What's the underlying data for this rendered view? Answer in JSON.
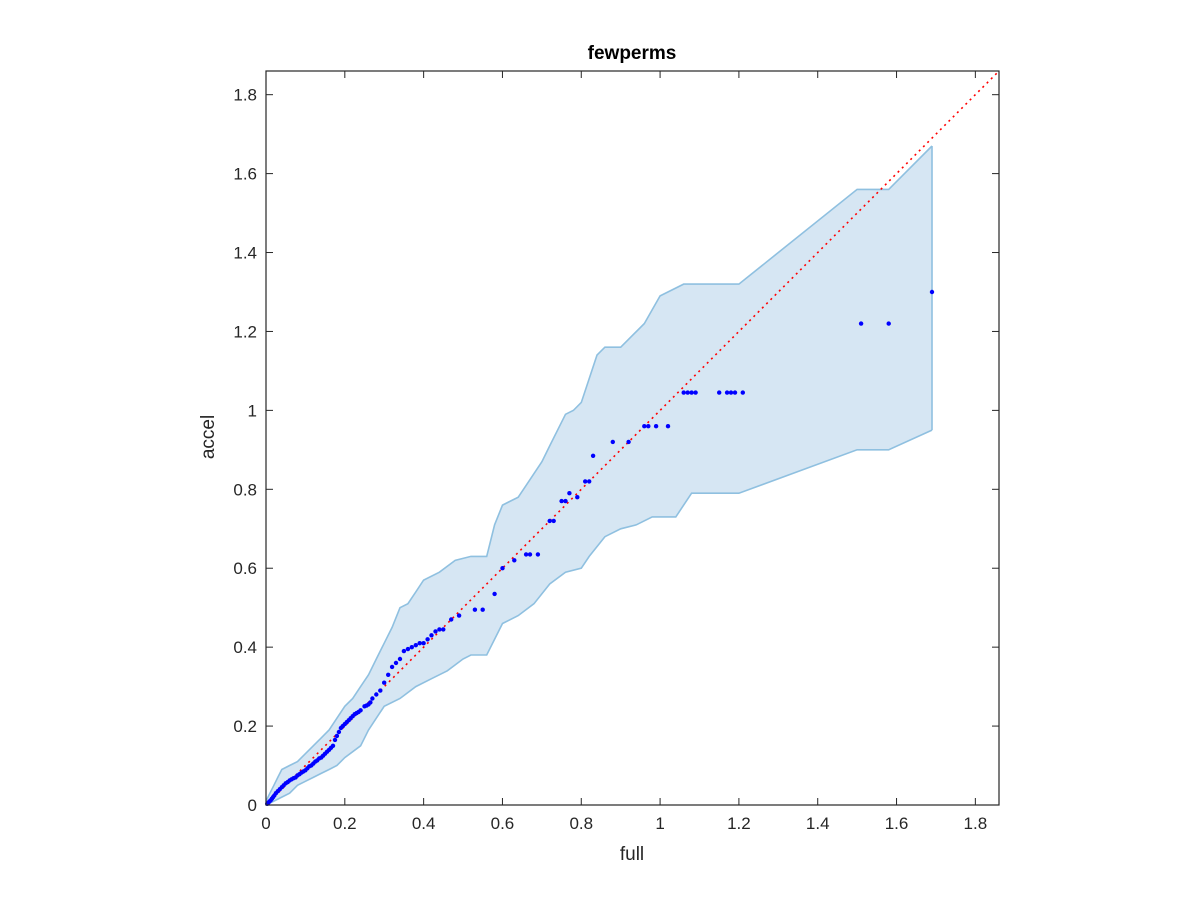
{
  "chart_data": {
    "type": "scatter",
    "title": "fewperms",
    "xlabel": "full",
    "ylabel": "accel",
    "xlim": [
      0,
      1.86
    ],
    "ylim": [
      0,
      1.86
    ],
    "xticks": [
      0,
      0.2,
      0.4,
      0.6,
      0.8,
      1,
      1.2,
      1.4,
      1.6,
      1.8
    ],
    "yticks": [
      0,
      0.2,
      0.4,
      0.6,
      0.8,
      1,
      1.2,
      1.4,
      1.6,
      1.8
    ],
    "xtick_labels": [
      "0",
      "0.2",
      "0.4",
      "0.6",
      "0.8",
      "1",
      "1.2",
      "1.4",
      "1.6",
      "1.8"
    ],
    "ytick_labels": [
      "0",
      "0.2",
      "0.4",
      "0.6",
      "0.8",
      "1",
      "1.2",
      "1.4",
      "1.6",
      "1.8"
    ],
    "grid": false,
    "colors": {
      "points": "#0000ff",
      "diagonal": "#ff0000",
      "band_fill": "#d6e6f3",
      "band_edge": "#8fc0e0",
      "axes": "#262626"
    },
    "band_upper": [
      [
        0,
        0.01
      ],
      [
        0.01,
        0.03
      ],
      [
        0.02,
        0.05
      ],
      [
        0.03,
        0.07
      ],
      [
        0.04,
        0.09
      ],
      [
        0.06,
        0.1
      ],
      [
        0.08,
        0.11
      ],
      [
        0.1,
        0.13
      ],
      [
        0.12,
        0.15
      ],
      [
        0.14,
        0.17
      ],
      [
        0.16,
        0.19
      ],
      [
        0.18,
        0.22
      ],
      [
        0.2,
        0.25
      ],
      [
        0.22,
        0.27
      ],
      [
        0.24,
        0.3
      ],
      [
        0.26,
        0.33
      ],
      [
        0.28,
        0.37
      ],
      [
        0.3,
        0.41
      ],
      [
        0.32,
        0.45
      ],
      [
        0.34,
        0.5
      ],
      [
        0.36,
        0.51
      ],
      [
        0.38,
        0.54
      ],
      [
        0.4,
        0.57
      ],
      [
        0.44,
        0.59
      ],
      [
        0.48,
        0.62
      ],
      [
        0.52,
        0.63
      ],
      [
        0.56,
        0.63
      ],
      [
        0.58,
        0.71
      ],
      [
        0.6,
        0.76
      ],
      [
        0.64,
        0.78
      ],
      [
        0.66,
        0.81
      ],
      [
        0.7,
        0.87
      ],
      [
        0.72,
        0.91
      ],
      [
        0.76,
        0.99
      ],
      [
        0.78,
        1.0
      ],
      [
        0.8,
        1.02
      ],
      [
        0.84,
        1.14
      ],
      [
        0.86,
        1.16
      ],
      [
        0.9,
        1.16
      ],
      [
        0.94,
        1.2
      ],
      [
        0.96,
        1.22
      ],
      [
        1.0,
        1.29
      ],
      [
        1.06,
        1.32
      ],
      [
        1.2,
        1.32
      ],
      [
        1.5,
        1.56
      ],
      [
        1.58,
        1.56
      ],
      [
        1.69,
        1.67
      ]
    ],
    "band_lower": [
      [
        0,
        0
      ],
      [
        0.02,
        0.01
      ],
      [
        0.04,
        0.02
      ],
      [
        0.06,
        0.03
      ],
      [
        0.08,
        0.05
      ],
      [
        0.1,
        0.06
      ],
      [
        0.12,
        0.07
      ],
      [
        0.14,
        0.08
      ],
      [
        0.16,
        0.09
      ],
      [
        0.18,
        0.1
      ],
      [
        0.2,
        0.12
      ],
      [
        0.24,
        0.15
      ],
      [
        0.26,
        0.19
      ],
      [
        0.28,
        0.22
      ],
      [
        0.3,
        0.25
      ],
      [
        0.34,
        0.27
      ],
      [
        0.38,
        0.3
      ],
      [
        0.42,
        0.32
      ],
      [
        0.46,
        0.34
      ],
      [
        0.5,
        0.37
      ],
      [
        0.52,
        0.38
      ],
      [
        0.56,
        0.38
      ],
      [
        0.6,
        0.46
      ],
      [
        0.64,
        0.48
      ],
      [
        0.68,
        0.51
      ],
      [
        0.72,
        0.56
      ],
      [
        0.76,
        0.59
      ],
      [
        0.8,
        0.6
      ],
      [
        0.82,
        0.63
      ],
      [
        0.86,
        0.68
      ],
      [
        0.9,
        0.7
      ],
      [
        0.94,
        0.71
      ],
      [
        0.98,
        0.73
      ],
      [
        1.04,
        0.73
      ],
      [
        1.08,
        0.79
      ],
      [
        1.2,
        0.79
      ],
      [
        1.5,
        0.9
      ],
      [
        1.58,
        0.9
      ],
      [
        1.69,
        0.95
      ]
    ],
    "x": [
      0.003,
      0.006,
      0.009,
      0.012,
      0.015,
      0.018,
      0.021,
      0.025,
      0.03,
      0.035,
      0.04,
      0.045,
      0.05,
      0.055,
      0.06,
      0.065,
      0.07,
      0.075,
      0.08,
      0.085,
      0.09,
      0.095,
      0.1,
      0.105,
      0.11,
      0.115,
      0.12,
      0.125,
      0.13,
      0.135,
      0.14,
      0.145,
      0.15,
      0.155,
      0.16,
      0.165,
      0.17,
      0.175,
      0.18,
      0.185,
      0.19,
      0.195,
      0.2,
      0.205,
      0.21,
      0.215,
      0.22,
      0.225,
      0.23,
      0.235,
      0.24,
      0.25,
      0.255,
      0.26,
      0.265,
      0.27,
      0.28,
      0.29,
      0.3,
      0.31,
      0.32,
      0.33,
      0.34,
      0.35,
      0.36,
      0.37,
      0.38,
      0.39,
      0.4,
      0.41,
      0.42,
      0.43,
      0.44,
      0.45,
      0.47,
      0.49,
      0.53,
      0.55,
      0.58,
      0.6,
      0.63,
      0.66,
      0.67,
      0.69,
      0.72,
      0.73,
      0.75,
      0.76,
      0.77,
      0.79,
      0.81,
      0.82,
      0.83,
      0.88,
      0.92,
      0.96,
      0.97,
      0.99,
      1.02,
      1.06,
      1.07,
      1.08,
      1.09,
      1.15,
      1.17,
      1.18,
      1.19,
      1.21,
      1.51,
      1.58,
      1.69
    ],
    "y": [
      0.003,
      0.006,
      0.009,
      0.012,
      0.016,
      0.02,
      0.024,
      0.03,
      0.035,
      0.04,
      0.045,
      0.05,
      0.055,
      0.058,
      0.062,
      0.065,
      0.068,
      0.07,
      0.075,
      0.078,
      0.082,
      0.085,
      0.088,
      0.093,
      0.098,
      0.1,
      0.105,
      0.11,
      0.113,
      0.118,
      0.12,
      0.125,
      0.13,
      0.135,
      0.14,
      0.145,
      0.15,
      0.165,
      0.175,
      0.185,
      0.195,
      0.2,
      0.205,
      0.21,
      0.215,
      0.22,
      0.225,
      0.23,
      0.233,
      0.236,
      0.24,
      0.25,
      0.252,
      0.255,
      0.26,
      0.27,
      0.28,
      0.29,
      0.31,
      0.33,
      0.35,
      0.36,
      0.37,
      0.39,
      0.395,
      0.4,
      0.405,
      0.41,
      0.41,
      0.42,
      0.43,
      0.44,
      0.445,
      0.445,
      0.47,
      0.48,
      0.495,
      0.495,
      0.535,
      0.6,
      0.62,
      0.635,
      0.635,
      0.635,
      0.72,
      0.72,
      0.77,
      0.77,
      0.79,
      0.78,
      0.82,
      0.82,
      0.885,
      0.92,
      0.92,
      0.96,
      0.96,
      0.96,
      0.96,
      1.045,
      1.045,
      1.045,
      1.045,
      1.045,
      1.045,
      1.045,
      1.045,
      1.045,
      1.22,
      1.22,
      1.3
    ]
  }
}
